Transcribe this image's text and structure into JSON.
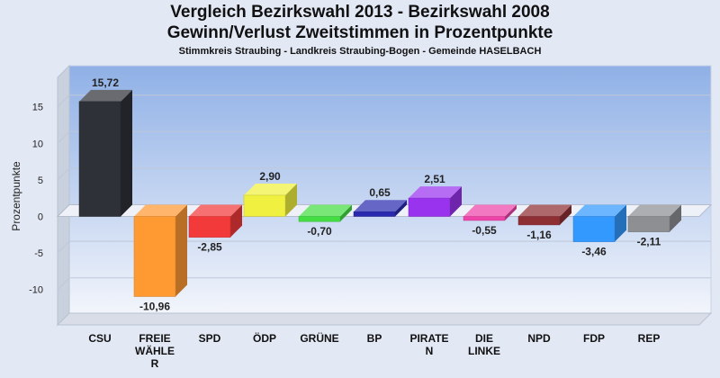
{
  "header": {
    "title_line1": "Vergleich Bezirkswahl 2013 - Bezirkswahl 2008",
    "title_line2": "Gewinn/Verlust Zweitstimmen in Prozentpunkte",
    "subtitle": "Stimmkreis Straubing - Landkreis Straubing-Bogen - Gemeinde HASELBACH"
  },
  "chart_data": {
    "type": "bar",
    "title": "Vergleich Bezirkswahl 2013 - Bezirkswahl 2008",
    "subtitle": "Gewinn/Verlust Zweitstimmen in Prozentpunkte",
    "ylabel": "Prozentpunkte",
    "xlabel": "",
    "ylim": [
      -15,
      20
    ],
    "yticks": [
      15,
      10,
      5,
      0,
      -5,
      -10
    ],
    "grid": true,
    "categories": [
      [
        "CSU"
      ],
      [
        "FREIE",
        "WÄHLE",
        "R"
      ],
      [
        "SPD"
      ],
      [
        "ÖDP"
      ],
      [
        "GRÜNE"
      ],
      [
        "BP"
      ],
      [
        "PIRATE",
        "N"
      ],
      [
        "DIE",
        "LINKE"
      ],
      [
        "NPD"
      ],
      [
        "FDP"
      ],
      [
        "REP"
      ]
    ],
    "values": [
      15.72,
      -10.96,
      -2.85,
      2.9,
      -0.7,
      0.65,
      2.51,
      -0.55,
      -1.16,
      -3.46,
      -2.11
    ],
    "value_labels": [
      "15,72",
      "-10,96",
      "-2,85",
      "2,90",
      "-0,70",
      "0,65",
      "2,51",
      "-0,55",
      "-1,16",
      "-3,46",
      "-2,11"
    ],
    "colors": [
      "#2e3138",
      "#ff9a33",
      "#f23a3a",
      "#f0f040",
      "#44dd44",
      "#2a2ab0",
      "#9933ee",
      "#ee44aa",
      "#8e2f34",
      "#3399ff",
      "#8d8f93"
    ]
  }
}
